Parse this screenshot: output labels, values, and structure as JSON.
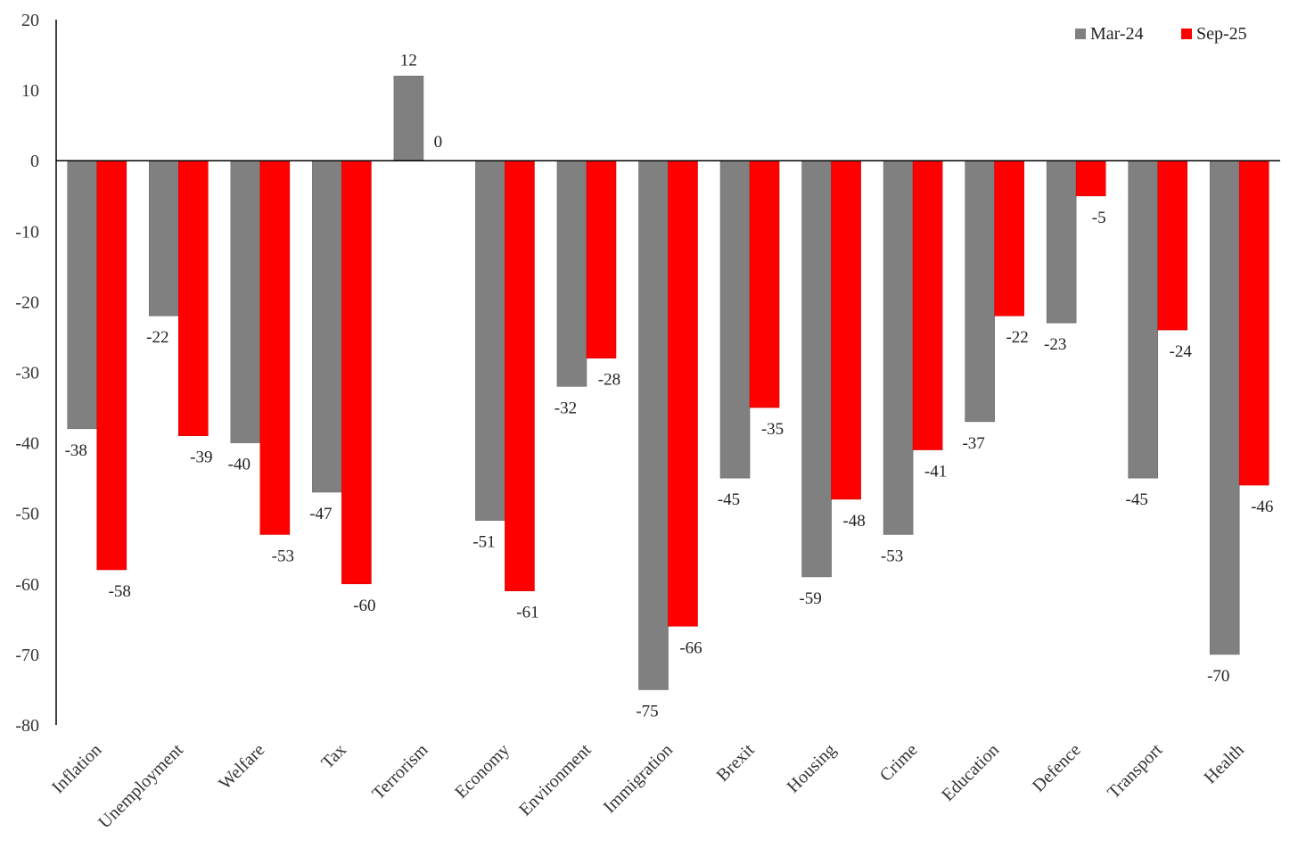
{
  "chart_data": {
    "type": "bar",
    "categories": [
      "Inflation",
      "Unemployment",
      "Welfare",
      "Tax",
      "Terrorism",
      "Economy",
      "Environment",
      "Immigration",
      "Brexit",
      "Housing",
      "Crime",
      "Education",
      "Defence",
      "Transport",
      "Health"
    ],
    "series": [
      {
        "name": "Mar-24",
        "color": "#808080",
        "values": [
          -38,
          -22,
          -40,
          -47,
          12,
          -51,
          -32,
          -75,
          -45,
          -59,
          -53,
          -37,
          -23,
          -45,
          -70
        ]
      },
      {
        "name": "Sep-25",
        "color": "#ff0000",
        "values": [
          -58,
          -39,
          -53,
          -60,
          0,
          -61,
          -28,
          -66,
          -35,
          -48,
          -41,
          -22,
          -5,
          -24,
          -46
        ]
      }
    ],
    "ylim": [
      -80,
      20
    ],
    "yticks": [
      20,
      10,
      0,
      -10,
      -20,
      -30,
      -40,
      -50,
      -60,
      -70,
      -80
    ],
    "grid": false,
    "legend": "top-right",
    "data_labels": true
  }
}
